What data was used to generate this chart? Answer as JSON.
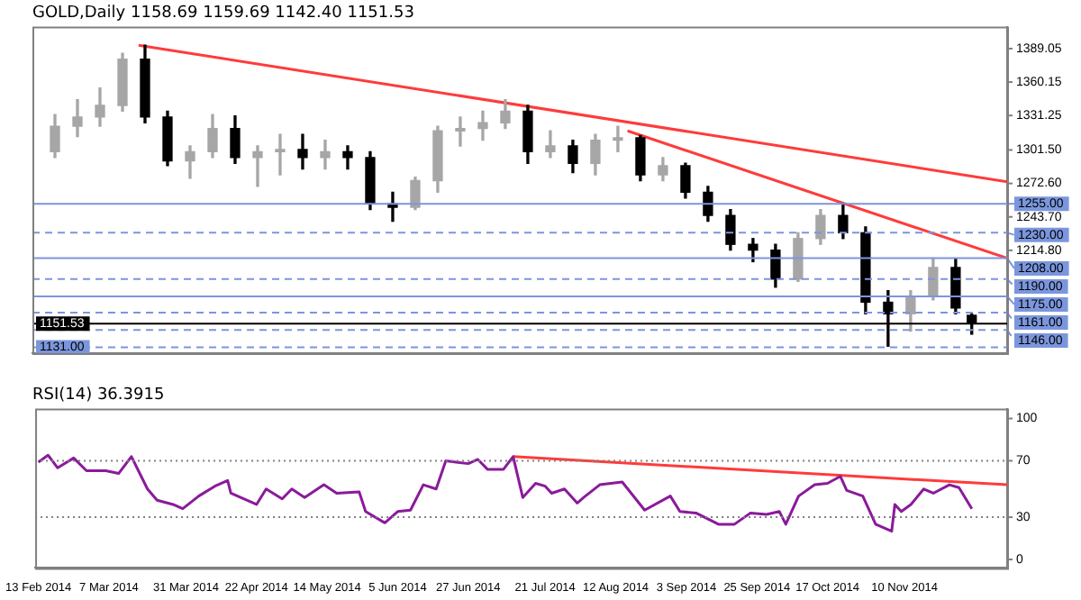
{
  "chart_data": [
    {
      "type": "candlestick",
      "title": "GOLD,Daily 1158.69 1159.69 1142.40 1151.53",
      "x": [
        "2014-02-19",
        "2014-02-26",
        "2014-03-05",
        "2014-03-12",
        "2014-03-19",
        "2014-03-26",
        "2014-04-02",
        "2014-04-09",
        "2014-04-16",
        "2014-04-23",
        "2014-04-30",
        "2014-05-07",
        "2014-05-14",
        "2014-05-21",
        "2014-05-28",
        "2014-06-04",
        "2014-06-11",
        "2014-06-18",
        "2014-06-25",
        "2014-07-02",
        "2014-07-09",
        "2014-07-16",
        "2014-07-23",
        "2014-07-30",
        "2014-08-06",
        "2014-08-13",
        "2014-08-20",
        "2014-08-27",
        "2014-09-03",
        "2014-09-10",
        "2014-09-17",
        "2014-09-24",
        "2014-10-01",
        "2014-10-08",
        "2014-10-15",
        "2014-10-22",
        "2014-10-29",
        "2014-11-05",
        "2014-11-12",
        "2014-11-19",
        "2014-11-26",
        "2014-12-01"
      ],
      "ohlc": [
        [
          1300,
          1332,
          1295,
          1322
        ],
        [
          1322,
          1345,
          1313,
          1330
        ],
        [
          1330,
          1355,
          1322,
          1340
        ],
        [
          1340,
          1385,
          1335,
          1380
        ],
        [
          1380,
          1392,
          1325,
          1330
        ],
        [
          1330,
          1335,
          1288,
          1292
        ],
        [
          1292,
          1305,
          1277,
          1300
        ],
        [
          1300,
          1332,
          1295,
          1320
        ],
        [
          1320,
          1331,
          1290,
          1295
        ],
        [
          1295,
          1305,
          1270,
          1300
        ],
        [
          1300,
          1315,
          1280,
          1302
        ],
        [
          1302,
          1315,
          1285,
          1295
        ],
        [
          1295,
          1310,
          1285,
          1300
        ],
        [
          1300,
          1305,
          1285,
          1295
        ],
        [
          1295,
          1300,
          1250,
          1255
        ],
        [
          1255,
          1265,
          1240,
          1252
        ],
        [
          1252,
          1278,
          1250,
          1275
        ],
        [
          1275,
          1322,
          1265,
          1318
        ],
        [
          1318,
          1330,
          1305,
          1320
        ],
        [
          1320,
          1335,
          1310,
          1325
        ],
        [
          1325,
          1345,
          1320,
          1335
        ],
        [
          1335,
          1340,
          1290,
          1300
        ],
        [
          1300,
          1318,
          1295,
          1305
        ],
        [
          1305,
          1310,
          1282,
          1290
        ],
        [
          1290,
          1315,
          1280,
          1310
        ],
        [
          1310,
          1322,
          1300,
          1312
        ],
        [
          1312,
          1314,
          1275,
          1280
        ],
        [
          1280,
          1295,
          1275,
          1288
        ],
        [
          1288,
          1290,
          1260,
          1265
        ],
        [
          1265,
          1270,
          1240,
          1245
        ],
        [
          1245,
          1250,
          1215,
          1220
        ],
        [
          1220,
          1225,
          1205,
          1215
        ],
        [
          1215,
          1220,
          1183,
          1190
        ],
        [
          1190,
          1230,
          1188,
          1225
        ],
        [
          1225,
          1250,
          1220,
          1245
        ],
        [
          1245,
          1255,
          1225,
          1230
        ],
        [
          1230,
          1235,
          1160,
          1170
        ],
        [
          1170,
          1180,
          1132,
          1160
        ],
        [
          1160,
          1180,
          1145,
          1175
        ],
        [
          1175,
          1208,
          1172,
          1200
        ],
        [
          1200,
          1208,
          1160,
          1165
        ],
        [
          1158.69,
          1159.69,
          1142.4,
          1151.53
        ]
      ],
      "colors": [
        "#a6a6a6",
        "#a6a6a6",
        "#a6a6a6",
        "#a6a6a6",
        "#000000",
        "#000000",
        "#a6a6a6",
        "#a6a6a6",
        "#000000",
        "#a6a6a6",
        "#a6a6a6",
        "#000000",
        "#a6a6a6",
        "#000000",
        "#000000",
        "#000000",
        "#a6a6a6",
        "#a6a6a6",
        "#a6a6a6",
        "#a6a6a6",
        "#a6a6a6",
        "#000000",
        "#a6a6a6",
        "#000000",
        "#a6a6a6",
        "#a6a6a6",
        "#000000",
        "#a6a6a6",
        "#000000",
        "#000000",
        "#000000",
        "#000000",
        "#000000",
        "#a6a6a6",
        "#a6a6a6",
        "#000000",
        "#000000",
        "#000000",
        "#a6a6a6",
        "#a6a6a6",
        "#000000",
        "#000000"
      ],
      "series": [
        {
          "type": "line",
          "color": "#ff3b3b",
          "x": [
            "2014-03-17",
            "2014-12-12"
          ],
          "values": [
            1392,
            1274
          ]
        },
        {
          "type": "line",
          "color": "#ff3b3b",
          "x": [
            "2014-08-16",
            "2014-12-12"
          ],
          "values": [
            1318,
            1208
          ]
        }
      ],
      "xlim": [
        "2014-02-12",
        "2014-12-12"
      ],
      "ylim": [
        1126,
        1408
      ],
      "yticks": [
        {
          "value": 1389.05,
          "label": "1389.05"
        },
        {
          "value": 1360.15,
          "label": "1360.15"
        },
        {
          "value": 1331.25,
          "label": "1331.25"
        },
        {
          "value": 1301.5,
          "label": "1301.50"
        },
        {
          "value": 1272.6,
          "label": "1272.60"
        },
        {
          "value": 1243.7,
          "label": "1243.70"
        },
        {
          "value": 1214.8,
          "label": "1214.80"
        }
      ],
      "tick_labels": "y",
      "ref_lines": [
        {
          "axis": "y",
          "value": 1255,
          "label": "1255.00",
          "color": "#7b96dd",
          "line_style": "solid"
        },
        {
          "axis": "y",
          "value": 1230,
          "label": "1230.00",
          "color": "#7b96dd",
          "line_style": "dashed"
        },
        {
          "axis": "y",
          "value": 1208,
          "label": "1208.00",
          "color": "#7b96dd",
          "line_style": "solid"
        },
        {
          "axis": "y",
          "value": 1190,
          "label": "1190.00",
          "color": "#7b96dd",
          "line_style": "dashed"
        },
        {
          "axis": "y",
          "value": 1175,
          "label": "1175.00",
          "color": "#7b96dd",
          "line_style": "solid"
        },
        {
          "axis": "y",
          "value": 1161,
          "label": "1161.00",
          "color": "#7b96dd",
          "line_style": "dashed"
        },
        {
          "axis": "y",
          "value": 1151.53,
          "label": "1151.53",
          "color": "#000000",
          "line_style": "solid"
        },
        {
          "axis": "y",
          "value": 1146,
          "label": "1146.00",
          "color": "#7b96dd",
          "line_style": "dashed"
        },
        {
          "axis": "y",
          "value": 1131,
          "label": "1131.00",
          "color": "#7b96dd",
          "line_style": "dashed"
        }
      ]
    },
    {
      "type": "line",
      "title": "RSI(14) 36.3915",
      "series": [
        {
          "color": "#8b1a9b",
          "x": [
            "2014-02-13",
            "2014-02-16",
            "2014-02-19",
            "2014-02-24",
            "2014-02-28",
            "2014-03-06",
            "2014-03-10",
            "2014-03-14",
            "2014-03-19",
            "2014-03-22",
            "2014-03-27",
            "2014-03-30",
            "2014-04-04",
            "2014-04-09",
            "2014-04-13",
            "2014-04-14",
            "2014-04-22",
            "2014-04-25",
            "2014-04-30",
            "2014-05-03",
            "2014-05-07",
            "2014-05-13",
            "2014-05-17",
            "2014-05-24",
            "2014-05-26",
            "2014-06-01",
            "2014-06-05",
            "2014-06-09",
            "2014-06-13",
            "2014-06-17",
            "2014-06-20",
            "2014-06-27",
            "2014-06-30",
            "2014-07-03",
            "2014-07-08",
            "2014-07-11",
            "2014-07-14",
            "2014-07-18",
            "2014-07-21",
            "2014-07-23",
            "2014-07-27",
            "2014-07-31",
            "2014-08-02",
            "2014-08-07",
            "2014-08-14",
            "2014-08-21",
            "2014-08-29",
            "2014-09-01",
            "2014-09-06",
            "2014-09-13",
            "2014-09-18",
            "2014-09-23",
            "2014-09-28",
            "2014-10-02",
            "2014-10-04",
            "2014-10-08",
            "2014-10-13",
            "2014-10-17",
            "2014-10-21",
            "2014-10-23",
            "2014-10-28",
            "2014-11-01",
            "2014-11-06",
            "2014-11-07",
            "2014-11-09",
            "2014-11-12",
            "2014-11-16",
            "2014-11-19",
            "2014-11-24",
            "2014-11-27",
            "2014-12-01"
          ],
          "values": [
            69,
            74,
            65,
            72,
            63,
            63,
            61,
            73,
            50,
            42,
            39,
            36,
            45,
            52,
            56,
            47,
            39,
            50,
            43,
            50,
            44,
            53,
            47,
            48,
            34,
            26,
            34,
            35,
            53,
            50,
            70,
            68,
            71,
            64,
            64,
            73,
            44,
            54,
            52,
            47,
            50,
            40,
            44,
            53,
            55,
            35,
            45,
            34,
            33,
            25,
            25,
            33,
            32,
            34,
            25,
            45,
            53,
            54,
            59,
            49,
            45,
            25,
            20,
            39,
            34,
            39,
            50,
            47,
            53,
            51,
            36
          ]
        },
        {
          "type": "line",
          "color": "#ff3b3b",
          "x": [
            "2014-07-11",
            "2014-12-12"
          ],
          "values": [
            73,
            53
          ]
        }
      ],
      "xlim": [
        "2014-02-12",
        "2014-12-12"
      ],
      "ylim": [
        -6,
        107
      ],
      "yticks": [
        0,
        30,
        70,
        100
      ],
      "xticks": [
        {
          "value": "2014-02-13",
          "label": "13 Feb 2014"
        },
        {
          "value": "2014-03-07",
          "label": "7 Mar 2014"
        },
        {
          "value": "2014-03-31",
          "label": "31 Mar 2014"
        },
        {
          "value": "2014-04-22",
          "label": "22 Apr 2014"
        },
        {
          "value": "2014-05-14",
          "label": "14 May 2014"
        },
        {
          "value": "2014-06-05",
          "label": "5 Jun 2014"
        },
        {
          "value": "2014-06-27",
          "label": "27 Jun 2014"
        },
        {
          "value": "2014-07-21",
          "label": "21 Jul 2014"
        },
        {
          "value": "2014-08-12",
          "label": "12 Aug 2014"
        },
        {
          "value": "2014-09-03",
          "label": "3 Sep 2014"
        },
        {
          "value": "2014-09-25",
          "label": "25 Sep 2014"
        },
        {
          "value": "2014-10-17",
          "label": "17 Oct 2014"
        },
        {
          "value": "2014-11-10",
          "label": "10 Nov 2014"
        }
      ],
      "ref_lines": [
        {
          "axis": "y",
          "value": 70,
          "color": "#808080",
          "line_style": "dotted"
        },
        {
          "axis": "y",
          "value": 30,
          "color": "#808080",
          "line_style": "dotted"
        }
      ]
    }
  ]
}
